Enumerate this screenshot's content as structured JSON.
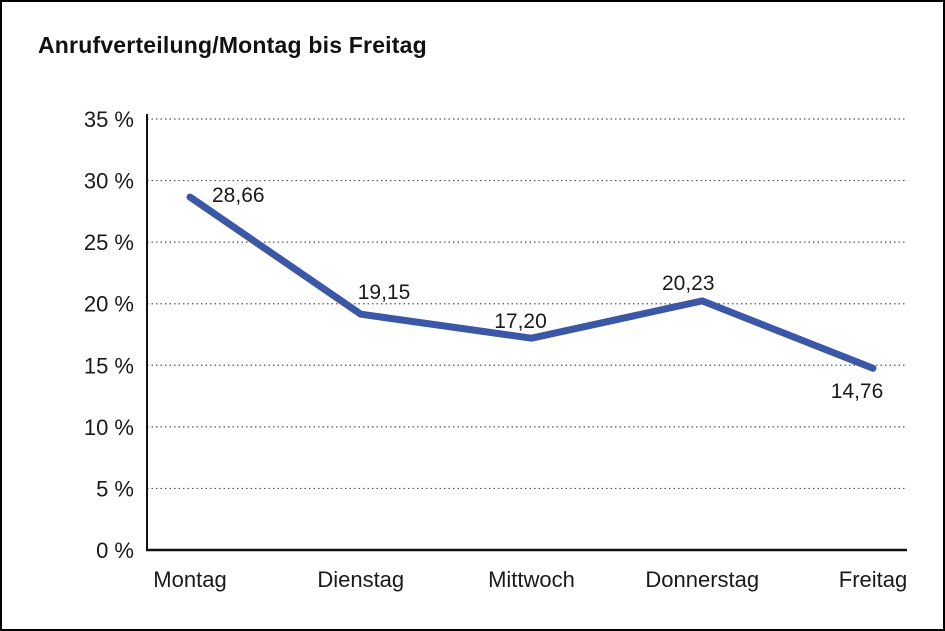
{
  "window": {
    "background_color": "#ffffff",
    "frame_border_color": "#000000"
  },
  "chart_data": {
    "type": "line",
    "title": "Anrufverteilung/Montag bis Freitag",
    "categories": [
      "Montag",
      "Dienstag",
      "Mittwoch",
      "Donnerstag",
      "Freitag"
    ],
    "series": [
      {
        "name": "Anrufverteilung",
        "values": [
          28.66,
          19.15,
          17.2,
          20.23,
          14.76
        ]
      }
    ],
    "point_labels": [
      "28,66",
      "19,15",
      "17,20",
      "20,23",
      "14,76"
    ],
    "y_ticks": [
      {
        "value": 0,
        "label": "0 %"
      },
      {
        "value": 5,
        "label": "5 %"
      },
      {
        "value": 10,
        "label": "10 %"
      },
      {
        "value": 15,
        "label": "15 %"
      },
      {
        "value": 20,
        "label": "20 %"
      },
      {
        "value": 25,
        "label": "25 %"
      },
      {
        "value": 30,
        "label": "30 %"
      },
      {
        "value": 35,
        "label": "35 %"
      }
    ],
    "ylim": [
      0,
      35
    ],
    "xlabel": "",
    "ylabel": "",
    "legend": "none",
    "grid": "horizontal-dotted",
    "line_color": "#3A58A5",
    "axis_color": "#111111",
    "grid_color": "#555555",
    "text_color": "#1a1a1a"
  }
}
